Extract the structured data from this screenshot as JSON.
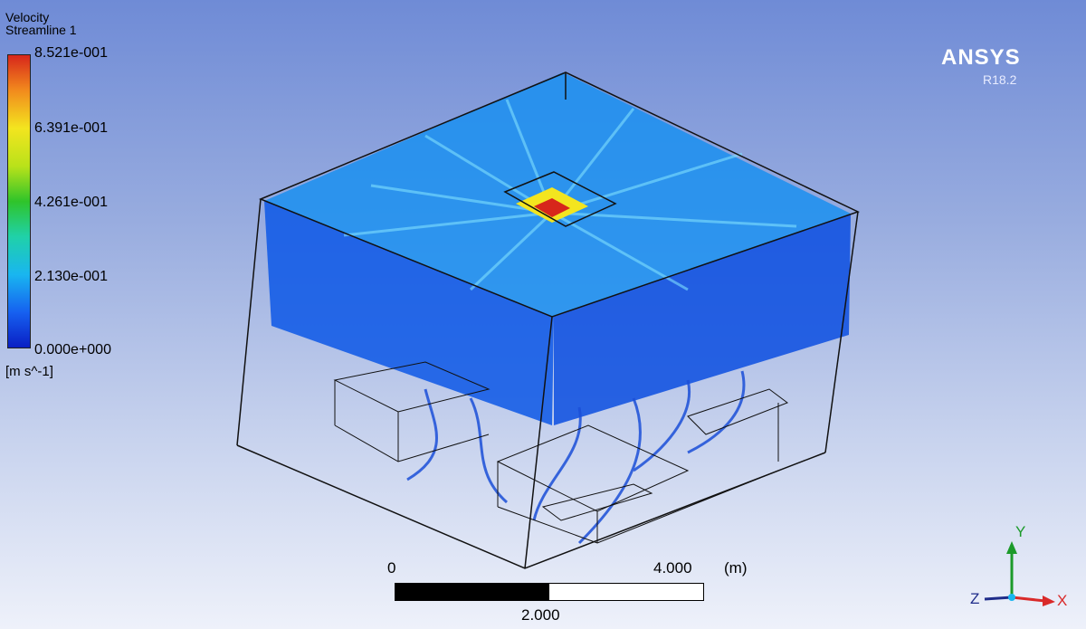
{
  "legend": {
    "title": "Velocity",
    "subtitle": "Streamline 1",
    "ticks": [
      "8.521e-001",
      "6.391e-001",
      "4.261e-001",
      "2.130e-001",
      "0.000e+000"
    ],
    "unit": "[m s^-1]"
  },
  "brand": {
    "name": "ANSYS",
    "version": "R18.2"
  },
  "scale": {
    "zero": "0",
    "max": "4.000",
    "unit": "(m)",
    "mid": "2.000"
  },
  "axes": {
    "y": "Y",
    "x": "X",
    "z": "Z"
  },
  "colors": {
    "stream_low": "#0a3fe0",
    "stream_mid": "#18b8f2",
    "stream_high": "#f3e51f",
    "peak": "#d7261b"
  }
}
